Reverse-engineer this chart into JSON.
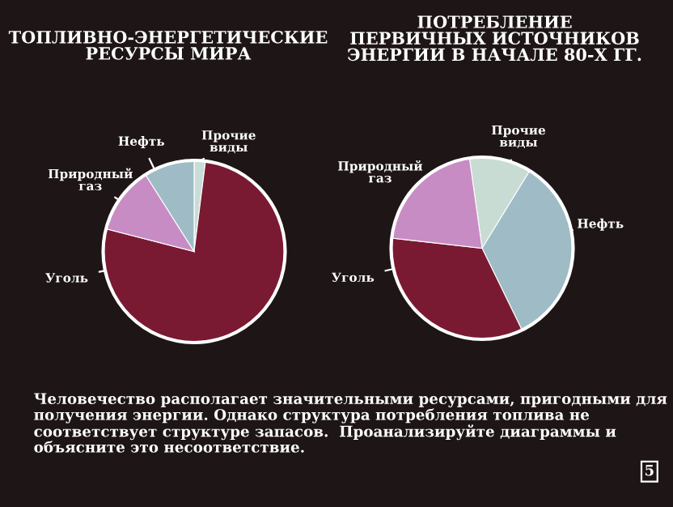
{
  "chart_data": [
    {
      "type": "pie",
      "title": "ТОПЛИВНО-ЭНЕРГЕТИЧЕСКИЕ\nРЕСУРСЫ МИРА",
      "categories": [
        "Прочие\nвиды",
        "Уголь",
        "Природный\nгаз",
        "Нефть"
      ],
      "values": [
        2,
        77,
        12,
        9
      ],
      "colors": [
        "#c8dcd8",
        "#7a1a32",
        "#c88cc4",
        "#9fbcc6"
      ],
      "annotations": [
        "Человечество располагает значительными ресурсами, пригодными для получения энергии. Однако структура потребления топлива не соответствует структуре запасов.  Проанализируйте диаграммы и объясните это несоответствие.",
        "5"
      ]
    },
    {
      "type": "pie",
      "title": "ПОТРЕБЛЕНИЕ\nПЕРВИЧНЫХ ИСТОЧНИКОВ\nЭНЕРГИИ В НАЧАЛЕ 80-Х ГГ.",
      "categories": [
        "Прочие\nвиды",
        "Нефть",
        "Уголь",
        "Природный\nгаз"
      ],
      "values": [
        11,
        34,
        34,
        21
      ],
      "colors": [
        "#c8dcd4",
        "#9fbcc6",
        "#7a1a32",
        "#c88cc4"
      ]
    }
  ]
}
